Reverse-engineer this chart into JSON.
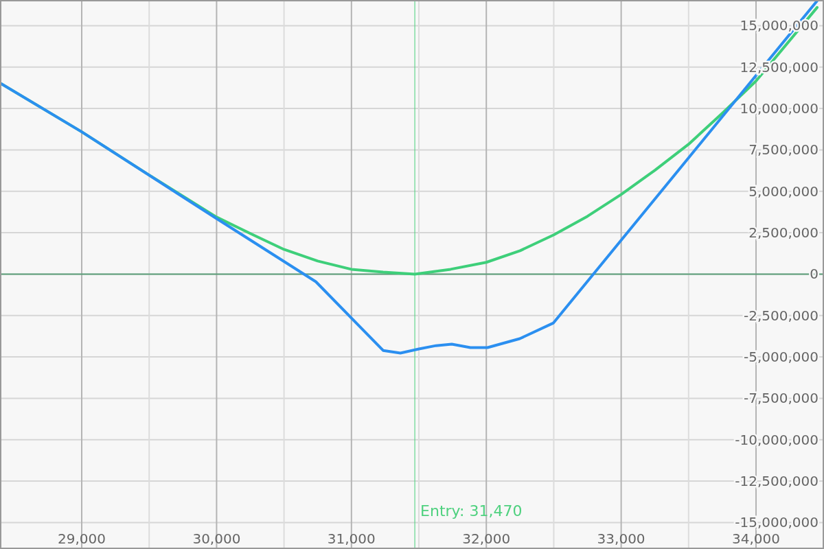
{
  "chart_data": {
    "type": "line",
    "xlim": [
      28394,
      34504
    ],
    "ylim": [
      -16600000,
      16550000
    ],
    "xticks": [
      {
        "value": 29000,
        "label": "29,000"
      },
      {
        "value": 29500,
        "label": null
      },
      {
        "value": 30000,
        "label": "30,000"
      },
      {
        "value": 30500,
        "label": null
      },
      {
        "value": 31000,
        "label": "31,000"
      },
      {
        "value": 31500,
        "label": null
      },
      {
        "value": 32000,
        "label": "32,000"
      },
      {
        "value": 32500,
        "label": null
      },
      {
        "value": 33000,
        "label": "33,000"
      },
      {
        "value": 33500,
        "label": null
      },
      {
        "value": 34000,
        "label": "34,000"
      }
    ],
    "yticks": [
      {
        "value": -15000000,
        "label": "-15,000,000"
      },
      {
        "value": -12500000,
        "label": "-12,500,000"
      },
      {
        "value": -10000000,
        "label": "-10,000,000"
      },
      {
        "value": -7500000,
        "label": "-7,500,000"
      },
      {
        "value": -5000000,
        "label": "-5,000,000"
      },
      {
        "value": -2500000,
        "label": "-2,500,000"
      },
      0,
      {
        "value": 2500000,
        "label": "2,500,000"
      },
      {
        "value": 5000000,
        "label": "5,000,000"
      },
      {
        "value": 7500000,
        "label": "7,500,000"
      },
      {
        "value": 10000000,
        "label": "10,000,000"
      },
      {
        "value": 12500000,
        "label": "12,500,000"
      },
      {
        "value": 15000000,
        "label": "15,000,000"
      }
    ],
    "grid": true,
    "marker": "none",
    "line_style": "solid",
    "ref_lines": [
      {
        "axis": "y",
        "value": 0,
        "color": "#5a9e78"
      },
      {
        "axis": "x",
        "value": 31470,
        "label": "Entry: 31,470",
        "color": "#4fd17f"
      }
    ],
    "series": [
      {
        "color": "#3ecf7a",
        "x": [
          28394,
          29000,
          29500,
          30000,
          30250,
          30500,
          30750,
          31000,
          31235,
          31470,
          31735,
          32000,
          32250,
          32500,
          32750,
          33000,
          33250,
          33500,
          33750,
          34000,
          34453
        ],
        "values": [
          11540000,
          8590000,
          5980000,
          3440000,
          2450000,
          1490000,
          790000,
          290000,
          120000,
          0,
          290000,
          710000,
          1410000,
          2370000,
          3490000,
          4810000,
          6270000,
          7840000,
          9710000,
          11660000,
          16100000
        ]
      },
      {
        "color": "#2b8ff0",
        "x": [
          28394,
          29000,
          30000,
          30736,
          31235,
          31363,
          31500,
          31627,
          31744,
          31882,
          32009,
          32248,
          32498,
          34453
        ],
        "values": [
          11540000,
          8590000,
          3350000,
          -460000,
          -4610000,
          -4770000,
          -4520000,
          -4320000,
          -4230000,
          -4440000,
          -4440000,
          -3900000,
          -2950000,
          16500000
        ]
      }
    ]
  }
}
